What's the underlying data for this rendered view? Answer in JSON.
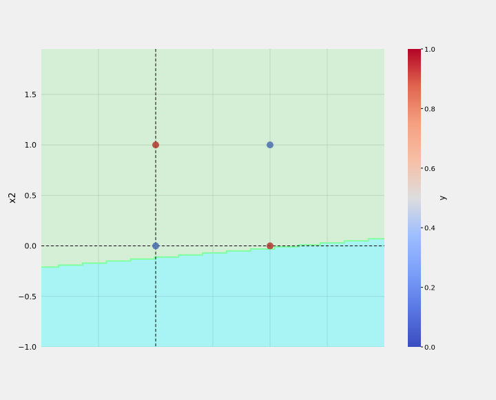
{
  "chart_data": {
    "type": "scatter",
    "title": "",
    "xlabel": "",
    "ylabel": "x2",
    "xlim": [
      -0.5,
      2.5
    ],
    "ylim": [
      -1.0,
      1.95
    ],
    "x_gridlines": [
      0.0,
      0.5,
      1.0,
      1.5,
      2.0
    ],
    "y_ticks": [
      -1.0,
      -0.5,
      0.0,
      0.5,
      1.0,
      1.5
    ],
    "y_tick_labels": [
      "−1.0",
      "−0.5",
      "0.0",
      "0.5",
      "1.0",
      "1.5"
    ],
    "reference_lines": {
      "x": 0.5,
      "y": 0.0,
      "style": "dashed"
    },
    "points": [
      {
        "x": 0.5,
        "y": 1.0,
        "label": 1
      },
      {
        "x": 1.5,
        "y": 1.0,
        "label": 0
      },
      {
        "x": 0.5,
        "y": 0.0,
        "label": 0
      },
      {
        "x": 1.5,
        "y": 0.0,
        "label": 1
      }
    ],
    "decision_boundary": {
      "description": "stepped boundary between two regions",
      "line_points": [
        [
          -0.5,
          -0.21
        ],
        [
          -0.35,
          -0.21
        ],
        [
          -0.35,
          -0.19
        ],
        [
          -0.14,
          -0.19
        ],
        [
          -0.14,
          -0.17
        ],
        [
          0.07,
          -0.17
        ],
        [
          0.07,
          -0.15
        ],
        [
          0.28,
          -0.15
        ],
        [
          0.28,
          -0.13
        ],
        [
          0.49,
          -0.13
        ],
        [
          0.49,
          -0.11
        ],
        [
          0.7,
          -0.11
        ],
        [
          0.7,
          -0.09
        ],
        [
          0.91,
          -0.09
        ],
        [
          0.91,
          -0.07
        ],
        [
          1.12,
          -0.07
        ],
        [
          1.12,
          -0.05
        ],
        [
          1.33,
          -0.05
        ],
        [
          1.33,
          -0.03
        ],
        [
          1.54,
          -0.03
        ],
        [
          1.54,
          -0.01
        ],
        [
          1.75,
          -0.01
        ],
        [
          1.75,
          0.01
        ],
        [
          1.94,
          0.01
        ],
        [
          1.94,
          0.03
        ],
        [
          2.15,
          0.03
        ],
        [
          2.15,
          0.05
        ],
        [
          2.36,
          0.05
        ],
        [
          2.36,
          0.07
        ],
        [
          2.5,
          0.07
        ]
      ],
      "upper_region_color": "#d4efd5",
      "lower_region_color": "#a8f4f4",
      "boundary_color": "#7fffa0"
    },
    "colorbar": {
      "label": "y",
      "min": 0.0,
      "max": 1.0,
      "ticks": [
        "0.0",
        "0.2",
        "0.4",
        "0.6",
        "0.8",
        "1.0"
      ],
      "colormap": "coolwarm",
      "placement": "right"
    },
    "grid": true,
    "point_colors": {
      "0": "#4a6fb0",
      "1": "#b03a2e"
    }
  }
}
